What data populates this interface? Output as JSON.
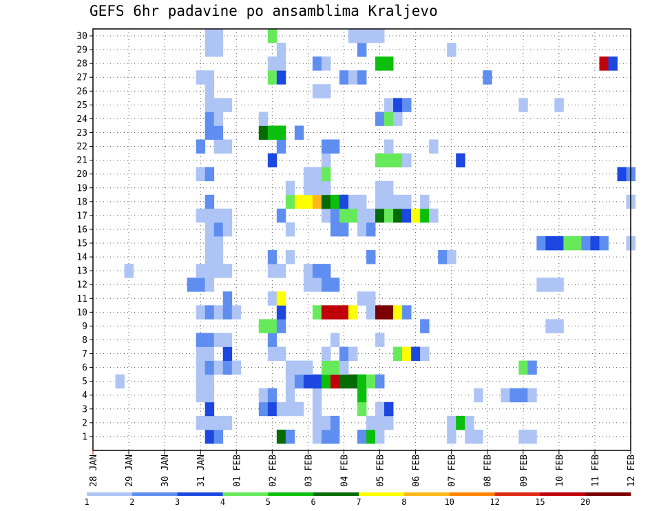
{
  "chart_data": {
    "type": "heatmap",
    "title": "GEFS 6hr padavine po ansamblima Kraljevo",
    "y_categories": [
      "1",
      "2",
      "3",
      "4",
      "5",
      "6",
      "7",
      "8",
      "9",
      "10",
      "11",
      "12",
      "13",
      "14",
      "15",
      "16",
      "17",
      "18",
      "19",
      "20",
      "21",
      "22",
      "23",
      "24",
      "25",
      "26",
      "27",
      "28",
      "29",
      "30"
    ],
    "x_tick_labels": [
      "28 JAN",
      "29 JAN",
      "30 JAN",
      "31 JAN",
      "01 FEB",
      "02 FEB",
      "03 FEB",
      "04 FEB",
      "05 FEB",
      "06 FEB",
      "07 FEB",
      "08 FEB",
      "09 FEB",
      "10 FEB",
      "11 FEB",
      "12 FEB"
    ],
    "x_range_days": [
      0,
      15
    ],
    "time_step": "6hr",
    "grid": true,
    "colorbar": {
      "levels": [
        "1",
        "2",
        "3",
        "4",
        "5",
        "6",
        "7",
        "8",
        "10",
        "12",
        "15",
        "20"
      ],
      "colors": [
        "#aec4f5",
        "#5f8ef0",
        "#1c47e0",
        "#66ea5c",
        "#0cbf0c",
        "#056b05",
        "#ffff00",
        "#ffb81c",
        "#ff8400",
        "#e02a13",
        "#c0000a",
        "#7a0000"
      ]
    },
    "values": [
      [
        1,
        13,
        3
      ],
      [
        1,
        14,
        2
      ],
      [
        1,
        21,
        6
      ],
      [
        1,
        22,
        2
      ],
      [
        1,
        25,
        1
      ],
      [
        1,
        26,
        2
      ],
      [
        1,
        27,
        2
      ],
      [
        1,
        30,
        2
      ],
      [
        1,
        31,
        5
      ],
      [
        1,
        32,
        1
      ],
      [
        1,
        40,
        1
      ],
      [
        1,
        42,
        1
      ],
      [
        1,
        43,
        1
      ],
      [
        1,
        48,
        1
      ],
      [
        1,
        49,
        1
      ],
      [
        2,
        12,
        1
      ],
      [
        2,
        13,
        1
      ],
      [
        2,
        14,
        1
      ],
      [
        2,
        15,
        1
      ],
      [
        2,
        25,
        1
      ],
      [
        2,
        26,
        1
      ],
      [
        2,
        27,
        2
      ],
      [
        2,
        31,
        1
      ],
      [
        2,
        32,
        1
      ],
      [
        2,
        33,
        1
      ],
      [
        2,
        40,
        1
      ],
      [
        2,
        41,
        5
      ],
      [
        2,
        42,
        1
      ],
      [
        3,
        13,
        3
      ],
      [
        3,
        19,
        2
      ],
      [
        3,
        20,
        3
      ],
      [
        3,
        21,
        1
      ],
      [
        3,
        22,
        1
      ],
      [
        3,
        23,
        1
      ],
      [
        3,
        25,
        1
      ],
      [
        3,
        30,
        4
      ],
      [
        3,
        32,
        1
      ],
      [
        3,
        33,
        3
      ],
      [
        4,
        12,
        1
      ],
      [
        4,
        13,
        1
      ],
      [
        4,
        19,
        1
      ],
      [
        4,
        20,
        2
      ],
      [
        4,
        22,
        1
      ],
      [
        4,
        25,
        1
      ],
      [
        4,
        30,
        5
      ],
      [
        4,
        43,
        1
      ],
      [
        4,
        46,
        1
      ],
      [
        4,
        47,
        2
      ],
      [
        4,
        48,
        2
      ],
      [
        4,
        49,
        1
      ],
      [
        5,
        3,
        1
      ],
      [
        5,
        12,
        1
      ],
      [
        5,
        13,
        1
      ],
      [
        5,
        22,
        1
      ],
      [
        5,
        23,
        2
      ],
      [
        5,
        24,
        3
      ],
      [
        5,
        25,
        3
      ],
      [
        5,
        26,
        5
      ],
      [
        5,
        27,
        11
      ],
      [
        5,
        28,
        6
      ],
      [
        5,
        29,
        6
      ],
      [
        5,
        30,
        5
      ],
      [
        5,
        31,
        4
      ],
      [
        5,
        32,
        2
      ],
      [
        6,
        12,
        1
      ],
      [
        6,
        13,
        2
      ],
      [
        6,
        14,
        1
      ],
      [
        6,
        15,
        2
      ],
      [
        6,
        16,
        1
      ],
      [
        6,
        22,
        1
      ],
      [
        6,
        23,
        1
      ],
      [
        6,
        24,
        1
      ],
      [
        6,
        26,
        4
      ],
      [
        6,
        27,
        4
      ],
      [
        6,
        28,
        1
      ],
      [
        6,
        48,
        4
      ],
      [
        6,
        49,
        2
      ],
      [
        7,
        12,
        1
      ],
      [
        7,
        13,
        1
      ],
      [
        7,
        15,
        3
      ],
      [
        7,
        20,
        1
      ],
      [
        7,
        21,
        1
      ],
      [
        7,
        26,
        1
      ],
      [
        7,
        28,
        2
      ],
      [
        7,
        29,
        1
      ],
      [
        7,
        34,
        4
      ],
      [
        7,
        35,
        7
      ],
      [
        7,
        36,
        3
      ],
      [
        7,
        37,
        1
      ],
      [
        8,
        12,
        2
      ],
      [
        8,
        13,
        2
      ],
      [
        8,
        14,
        1
      ],
      [
        8,
        15,
        1
      ],
      [
        8,
        20,
        2
      ],
      [
        8,
        27,
        1
      ],
      [
        8,
        32,
        1
      ],
      [
        9,
        19,
        4
      ],
      [
        9,
        20,
        4
      ],
      [
        9,
        21,
        2
      ],
      [
        9,
        37,
        2
      ],
      [
        9,
        51,
        1
      ],
      [
        9,
        52,
        1
      ],
      [
        10,
        12,
        1
      ],
      [
        10,
        13,
        2
      ],
      [
        10,
        14,
        1
      ],
      [
        10,
        15,
        2
      ],
      [
        10,
        16,
        1
      ],
      [
        10,
        21,
        3
      ],
      [
        10,
        25,
        4
      ],
      [
        10,
        26,
        11
      ],
      [
        10,
        27,
        11
      ],
      [
        10,
        28,
        11
      ],
      [
        10,
        29,
        7
      ],
      [
        10,
        31,
        1
      ],
      [
        10,
        32,
        12
      ],
      [
        10,
        33,
        12
      ],
      [
        10,
        34,
        7
      ],
      [
        10,
        35,
        2
      ],
      [
        11,
        15,
        2
      ],
      [
        11,
        20,
        1
      ],
      [
        11,
        21,
        7
      ],
      [
        11,
        30,
        1
      ],
      [
        11,
        31,
        1
      ],
      [
        12,
        11,
        2
      ],
      [
        12,
        12,
        2
      ],
      [
        12,
        13,
        1
      ],
      [
        12,
        24,
        1
      ],
      [
        12,
        25,
        1
      ],
      [
        12,
        26,
        2
      ],
      [
        12,
        27,
        2
      ],
      [
        12,
        50,
        1
      ],
      [
        12,
        51,
        1
      ],
      [
        12,
        52,
        1
      ],
      [
        13,
        4,
        1
      ],
      [
        13,
        12,
        1
      ],
      [
        13,
        13,
        1
      ],
      [
        13,
        14,
        1
      ],
      [
        13,
        15,
        1
      ],
      [
        13,
        20,
        1
      ],
      [
        13,
        21,
        1
      ],
      [
        13,
        24,
        1
      ],
      [
        13,
        25,
        2
      ],
      [
        13,
        26,
        2
      ],
      [
        14,
        13,
        1
      ],
      [
        14,
        14,
        1
      ],
      [
        14,
        20,
        2
      ],
      [
        14,
        22,
        1
      ],
      [
        14,
        31,
        2
      ],
      [
        14,
        39,
        2
      ],
      [
        14,
        40,
        1
      ],
      [
        15,
        13,
        1
      ],
      [
        15,
        14,
        1
      ],
      [
        15,
        50,
        2
      ],
      [
        15,
        51,
        3
      ],
      [
        15,
        52,
        3
      ],
      [
        15,
        53,
        4
      ],
      [
        15,
        54,
        4
      ],
      [
        15,
        55,
        2
      ],
      [
        15,
        56,
        3
      ],
      [
        15,
        57,
        2
      ],
      [
        15,
        60,
        1
      ],
      [
        16,
        13,
        1
      ],
      [
        16,
        14,
        2
      ],
      [
        16,
        15,
        1
      ],
      [
        16,
        22,
        1
      ],
      [
        16,
        27,
        2
      ],
      [
        16,
        28,
        2
      ],
      [
        16,
        30,
        1
      ],
      [
        16,
        31,
        2
      ],
      [
        17,
        12,
        1
      ],
      [
        17,
        13,
        1
      ],
      [
        17,
        14,
        1
      ],
      [
        17,
        15,
        1
      ],
      [
        17,
        21,
        2
      ],
      [
        17,
        26,
        1
      ],
      [
        17,
        27,
        2
      ],
      [
        17,
        28,
        4
      ],
      [
        17,
        29,
        4
      ],
      [
        17,
        30,
        1
      ],
      [
        17,
        31,
        1
      ],
      [
        17,
        32,
        6
      ],
      [
        17,
        33,
        4
      ],
      [
        17,
        34,
        6
      ],
      [
        17,
        35,
        3
      ],
      [
        17,
        36,
        7
      ],
      [
        17,
        37,
        5
      ],
      [
        17,
        38,
        1
      ],
      [
        18,
        13,
        2
      ],
      [
        18,
        22,
        4
      ],
      [
        18,
        23,
        7
      ],
      [
        18,
        24,
        7
      ],
      [
        18,
        25,
        8
      ],
      [
        18,
        26,
        6
      ],
      [
        18,
        27,
        5
      ],
      [
        18,
        28,
        3
      ],
      [
        18,
        29,
        1
      ],
      [
        18,
        30,
        1
      ],
      [
        18,
        32,
        1
      ],
      [
        18,
        33,
        1
      ],
      [
        18,
        34,
        1
      ],
      [
        18,
        35,
        1
      ],
      [
        18,
        37,
        1
      ],
      [
        18,
        60,
        1
      ],
      [
        19,
        22,
        1
      ],
      [
        19,
        24,
        1
      ],
      [
        19,
        25,
        1
      ],
      [
        19,
        26,
        1
      ],
      [
        19,
        32,
        1
      ],
      [
        19,
        33,
        1
      ],
      [
        20,
        12,
        1
      ],
      [
        20,
        13,
        2
      ],
      [
        20,
        24,
        1
      ],
      [
        20,
        25,
        1
      ],
      [
        20,
        26,
        4
      ],
      [
        20,
        59,
        3
      ],
      [
        20,
        60,
        2
      ],
      [
        21,
        20,
        3
      ],
      [
        21,
        26,
        1
      ],
      [
        21,
        32,
        4
      ],
      [
        21,
        33,
        4
      ],
      [
        21,
        34,
        4
      ],
      [
        21,
        35,
        1
      ],
      [
        21,
        41,
        3
      ],
      [
        22,
        12,
        2
      ],
      [
        22,
        14,
        1
      ],
      [
        22,
        15,
        1
      ],
      [
        22,
        21,
        2
      ],
      [
        22,
        26,
        2
      ],
      [
        22,
        27,
        2
      ],
      [
        22,
        33,
        1
      ],
      [
        22,
        38,
        1
      ],
      [
        23,
        13,
        2
      ],
      [
        23,
        14,
        2
      ],
      [
        23,
        19,
        6
      ],
      [
        23,
        20,
        5
      ],
      [
        23,
        21,
        5
      ],
      [
        23,
        23,
        2
      ],
      [
        24,
        13,
        2
      ],
      [
        24,
        14,
        1
      ],
      [
        24,
        19,
        1
      ],
      [
        24,
        32,
        2
      ],
      [
        24,
        33,
        4
      ],
      [
        24,
        34,
        1
      ],
      [
        25,
        13,
        1
      ],
      [
        25,
        14,
        1
      ],
      [
        25,
        15,
        1
      ],
      [
        25,
        33,
        1
      ],
      [
        25,
        34,
        3
      ],
      [
        25,
        35,
        2
      ],
      [
        25,
        48,
        1
      ],
      [
        25,
        52,
        1
      ],
      [
        26,
        13,
        1
      ],
      [
        26,
        25,
        1
      ],
      [
        26,
        26,
        1
      ],
      [
        27,
        12,
        1
      ],
      [
        27,
        13,
        1
      ],
      [
        27,
        20,
        4
      ],
      [
        27,
        21,
        3
      ],
      [
        27,
        28,
        2
      ],
      [
        27,
        29,
        1
      ],
      [
        27,
        30,
        2
      ],
      [
        27,
        44,
        2
      ],
      [
        28,
        20,
        1
      ],
      [
        28,
        21,
        1
      ],
      [
        28,
        25,
        2
      ],
      [
        28,
        26,
        1
      ],
      [
        28,
        32,
        5
      ],
      [
        28,
        33,
        5
      ],
      [
        28,
        57,
        11
      ],
      [
        28,
        58,
        3
      ],
      [
        29,
        13,
        1
      ],
      [
        29,
        14,
        1
      ],
      [
        29,
        21,
        1
      ],
      [
        29,
        30,
        2
      ],
      [
        29,
        40,
        1
      ],
      [
        30,
        13,
        1
      ],
      [
        30,
        14,
        1
      ],
      [
        30,
        20,
        4
      ],
      [
        30,
        29,
        1
      ],
      [
        30,
        30,
        1
      ],
      [
        30,
        31,
        1
      ],
      [
        30,
        32,
        1
      ]
    ]
  }
}
